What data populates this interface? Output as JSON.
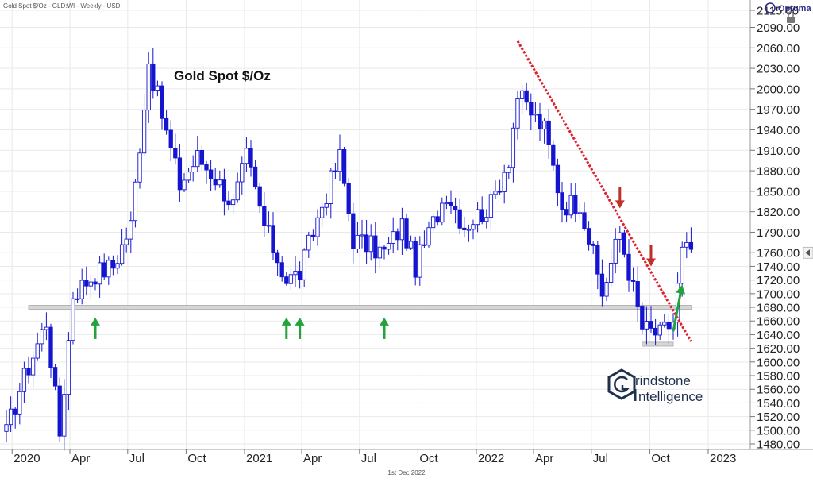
{
  "header": {
    "info": "Gold Spot $/Oz - GLD:WI - Weekly - USD",
    "brand": "Optuma"
  },
  "footer": {
    "date": "1st Dec 2022"
  },
  "watermark": {
    "line1": "rindstone",
    "line2": "ntelligence"
  },
  "colors": {
    "up_candle": "#ffffff",
    "down_candle": "#1515d0",
    "candle_outline": "#1515d0",
    "trendline": "#e0202e",
    "support_band": "#d6d6d6",
    "arrow_up": "#23a33b",
    "arrow_down": "#c0302b",
    "grid": "#e9e9e9",
    "brand_navy": "#1f2f4f"
  },
  "chart_data": {
    "type": "candlestick",
    "title": "Gold Spot $/Oz",
    "ylim": [
      1480,
      2120
    ],
    "y_ticks": [
      1480,
      1500,
      1520,
      1540,
      1560,
      1580,
      1600,
      1620,
      1640,
      1660,
      1680,
      1700,
      1720,
      1740,
      1760,
      1790,
      1820,
      1850,
      1880,
      1910,
      1940,
      1970,
      2000,
      2030,
      2060,
      2090,
      2115
    ],
    "y_tick_labels": [
      "1480.00",
      "1500.00",
      "1520.00",
      "1540.00",
      "1560.00",
      "1580.00",
      "1600.00",
      "1620.00",
      "1640.00",
      "1660.00",
      "1680.00",
      "1700.00",
      "1720.00",
      "1740.00",
      "1760.00",
      "1790.00",
      "1820.00",
      "1850.00",
      "1880.00",
      "1910.00",
      "1940.00",
      "1970.00",
      "2000.00",
      "2030.00",
      "2060.00",
      "2090.00",
      "2115.00"
    ],
    "x_range": [
      "2019-12-23",
      "2022-12-12"
    ],
    "x_ticks": [
      {
        "date": "2020-01-01",
        "label": "2020"
      },
      {
        "date": "2020-04-01",
        "label": "Apr"
      },
      {
        "date": "2020-07-01",
        "label": "Jul"
      },
      {
        "date": "2020-10-01",
        "label": "Oct"
      },
      {
        "date": "2021-01-01",
        "label": "2021"
      },
      {
        "date": "2021-04-01",
        "label": "Apr"
      },
      {
        "date": "2021-07-01",
        "label": "Jul"
      },
      {
        "date": "2021-10-01",
        "label": "Oct"
      },
      {
        "date": "2022-01-01",
        "label": "2022"
      },
      {
        "date": "2022-04-01",
        "label": "Apr"
      },
      {
        "date": "2022-07-01",
        "label": "Jul"
      },
      {
        "date": "2022-10-01",
        "label": "Oct"
      },
      {
        "date": "2023-01-01",
        "label": "2023"
      }
    ],
    "current_price": 1760,
    "support_band": {
      "from": "2020-01-27",
      "to": "2022-12-05",
      "low": 1677,
      "high": 1683
    },
    "support_band_small": {
      "from": "2022-09-19",
      "to": "2022-11-07",
      "low": 1623,
      "high": 1629
    },
    "trendline": {
      "start": {
        "date": "2022-03-07",
        "value": 2070
      },
      "end": {
        "date": "2022-12-05",
        "value": 1630
      }
    },
    "arrows_up": [
      {
        "date": "2020-05-11",
        "value": 1665
      },
      {
        "date": "2021-03-08",
        "value": 1665
      },
      {
        "date": "2021-03-29",
        "value": 1665
      },
      {
        "date": "2021-08-09",
        "value": 1665
      }
    ],
    "arrows_down": [
      {
        "date": "2022-08-15",
        "value": 1825
      },
      {
        "date": "2022-10-03",
        "value": 1740
      }
    ],
    "diagonal_arrow": {
      "from": {
        "date": "2022-11-07",
        "value": 1645
      },
      "to": {
        "date": "2022-11-21",
        "value": 1713
      }
    },
    "ohlc_nodes": [
      {
        "date": "2019-12-23",
        "close": 1495
      },
      {
        "date": "2020-01-13",
        "close": 1560
      },
      {
        "date": "2020-02-24",
        "close": 1660
      },
      {
        "date": "2020-03-16",
        "close": 1495
      },
      {
        "date": "2020-04-06",
        "close": 1700
      },
      {
        "date": "2020-05-11",
        "close": 1730
      },
      {
        "date": "2020-06-08",
        "close": 1740
      },
      {
        "date": "2020-07-06",
        "close": 1800
      },
      {
        "date": "2020-08-03",
        "close": 2040
      },
      {
        "date": "2020-08-31",
        "close": 1935
      },
      {
        "date": "2020-09-21",
        "close": 1860
      },
      {
        "date": "2020-10-19",
        "close": 1900
      },
      {
        "date": "2020-11-16",
        "close": 1870
      },
      {
        "date": "2020-12-14",
        "close": 1830
      },
      {
        "date": "2021-01-04",
        "close": 1900
      },
      {
        "date": "2021-02-01",
        "close": 1800
      },
      {
        "date": "2021-03-08",
        "close": 1720
      },
      {
        "date": "2021-03-29",
        "close": 1730
      },
      {
        "date": "2021-05-03",
        "close": 1830
      },
      {
        "date": "2021-05-31",
        "close": 1900
      },
      {
        "date": "2021-06-21",
        "close": 1780
      },
      {
        "date": "2021-08-09",
        "close": 1760
      },
      {
        "date": "2021-09-06",
        "close": 1800
      },
      {
        "date": "2021-09-27",
        "close": 1740
      },
      {
        "date": "2021-11-15",
        "close": 1850
      },
      {
        "date": "2021-12-13",
        "close": 1800
      },
      {
        "date": "2022-01-24",
        "close": 1830
      },
      {
        "date": "2022-02-21",
        "close": 1900
      },
      {
        "date": "2022-03-07",
        "close": 1990
      },
      {
        "date": "2022-04-18",
        "close": 1940
      },
      {
        "date": "2022-05-16",
        "close": 1830
      },
      {
        "date": "2022-06-13",
        "close": 1835
      },
      {
        "date": "2022-07-18",
        "close": 1700
      },
      {
        "date": "2022-08-15",
        "close": 1790
      },
      {
        "date": "2022-09-19",
        "close": 1650
      },
      {
        "date": "2022-10-17",
        "close": 1640
      },
      {
        "date": "2022-11-07",
        "close": 1660
      },
      {
        "date": "2022-11-21",
        "close": 1760
      },
      {
        "date": "2022-12-05",
        "close": 1765
      }
    ]
  }
}
